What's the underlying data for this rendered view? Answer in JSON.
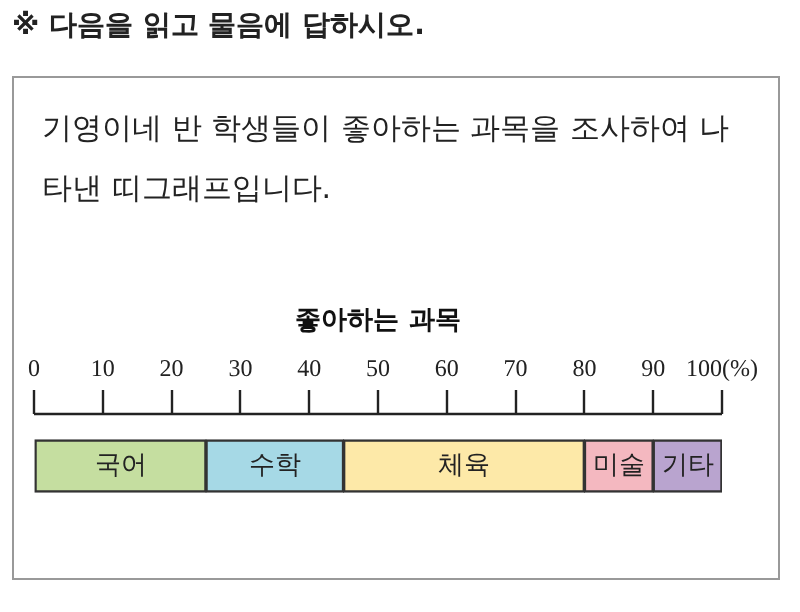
{
  "chart_data": {
    "type": "bar",
    "title": "좋아하는 과목",
    "orientation": "horizontal",
    "stacked": true,
    "categories": [
      null
    ],
    "series": [
      {
        "name": "국어",
        "color": "#c5dea0",
        "values": [
          25
        ]
      },
      {
        "name": "수학",
        "color": "#a6d9e6",
        "values": [
          20
        ]
      },
      {
        "name": "체육",
        "color": "#fde9a8",
        "values": [
          35
        ]
      },
      {
        "name": "미술",
        "color": "#f4b8c0",
        "values": [
          10
        ]
      },
      {
        "name": "기타",
        "color": "#b9a4cf",
        "values": [
          10
        ]
      }
    ],
    "xlim": [
      0,
      100
    ],
    "xticks": [
      0,
      10,
      20,
      30,
      40,
      50,
      60,
      70,
      80,
      90,
      {
        "value": 100,
        "label": "100(%)"
      }
    ],
    "legend": false,
    "annotations": [
      "※ 다음을 읽고 물음에 답하시오.",
      "기영이네 반 학생들이 좋아하는 과목을 조사하여 나타낸 띠그래프입니다."
    ]
  }
}
